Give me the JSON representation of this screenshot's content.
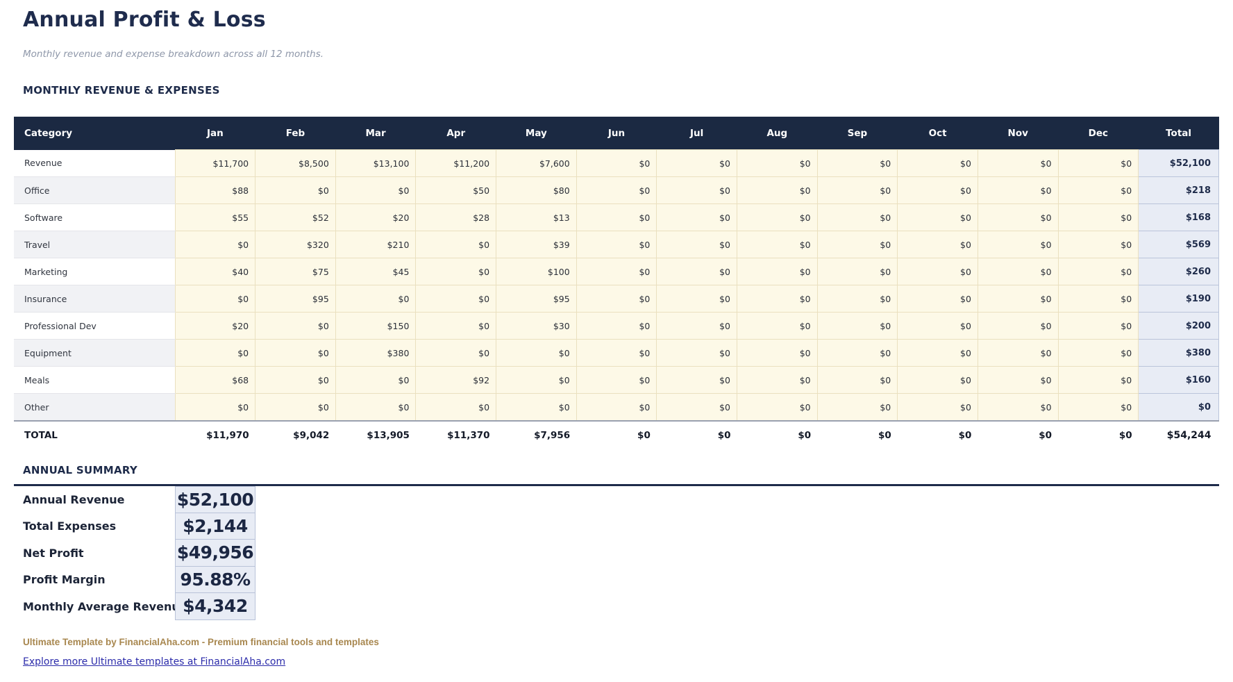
{
  "header": {
    "title": "Annual Profit & Loss",
    "subtitle": "Monthly revenue and expense breakdown across all 12 months."
  },
  "monthly_section": {
    "heading": "MONTHLY REVENUE & EXPENSES",
    "columns": [
      "Category",
      "Jan",
      "Feb",
      "Mar",
      "Apr",
      "May",
      "Jun",
      "Jul",
      "Aug",
      "Sep",
      "Oct",
      "Nov",
      "Dec",
      "Total"
    ],
    "rows": [
      {
        "category": "Revenue",
        "values": [
          "$11,700",
          "$8,500",
          "$13,100",
          "$11,200",
          "$7,600",
          "$0",
          "$0",
          "$0",
          "$0",
          "$0",
          "$0",
          "$0"
        ],
        "total": "$52,100"
      },
      {
        "category": "Office",
        "values": [
          "$88",
          "$0",
          "$0",
          "$50",
          "$80",
          "$0",
          "$0",
          "$0",
          "$0",
          "$0",
          "$0",
          "$0"
        ],
        "total": "$218"
      },
      {
        "category": "Software",
        "values": [
          "$55",
          "$52",
          "$20",
          "$28",
          "$13",
          "$0",
          "$0",
          "$0",
          "$0",
          "$0",
          "$0",
          "$0"
        ],
        "total": "$168"
      },
      {
        "category": "Travel",
        "values": [
          "$0",
          "$320",
          "$210",
          "$0",
          "$39",
          "$0",
          "$0",
          "$0",
          "$0",
          "$0",
          "$0",
          "$0"
        ],
        "total": "$569"
      },
      {
        "category": "Marketing",
        "values": [
          "$40",
          "$75",
          "$45",
          "$0",
          "$100",
          "$0",
          "$0",
          "$0",
          "$0",
          "$0",
          "$0",
          "$0"
        ],
        "total": "$260"
      },
      {
        "category": "Insurance",
        "values": [
          "$0",
          "$95",
          "$0",
          "$0",
          "$95",
          "$0",
          "$0",
          "$0",
          "$0",
          "$0",
          "$0",
          "$0"
        ],
        "total": "$190"
      },
      {
        "category": "Professional Dev",
        "values": [
          "$20",
          "$0",
          "$150",
          "$0",
          "$30",
          "$0",
          "$0",
          "$0",
          "$0",
          "$0",
          "$0",
          "$0"
        ],
        "total": "$200"
      },
      {
        "category": "Equipment",
        "values": [
          "$0",
          "$0",
          "$380",
          "$0",
          "$0",
          "$0",
          "$0",
          "$0",
          "$0",
          "$0",
          "$0",
          "$0"
        ],
        "total": "$380"
      },
      {
        "category": "Meals",
        "values": [
          "$68",
          "$0",
          "$0",
          "$92",
          "$0",
          "$0",
          "$0",
          "$0",
          "$0",
          "$0",
          "$0",
          "$0"
        ],
        "total": "$160"
      },
      {
        "category": "Other",
        "values": [
          "$0",
          "$0",
          "$0",
          "$0",
          "$0",
          "$0",
          "$0",
          "$0",
          "$0",
          "$0",
          "$0",
          "$0"
        ],
        "total": "$0"
      }
    ],
    "total_row": {
      "label": "TOTAL",
      "values": [
        "$11,970",
        "$9,042",
        "$13,905",
        "$11,370",
        "$7,956",
        "$0",
        "$0",
        "$0",
        "$0",
        "$0",
        "$0",
        "$0"
      ],
      "total": "$54,244"
    }
  },
  "summary_section": {
    "heading": "ANNUAL SUMMARY",
    "rows": [
      {
        "label": "Annual Revenue",
        "value": "$52,100"
      },
      {
        "label": "Total Expenses",
        "value": "$2,144"
      },
      {
        "label": "Net Profit",
        "value": "$49,956"
      },
      {
        "label": "Profit Margin",
        "value": "95.88%"
      },
      {
        "label": "Monthly Average Revenu",
        "value": "$4,342"
      }
    ]
  },
  "footer": {
    "tagline": "Ultimate Template by FinancialAha.com - Premium financial tools and templates",
    "link_text": "Explore more Ultimate templates at FinancialAha.com"
  },
  "colors": {
    "header_bg": "#1b2942",
    "accent_navy": "#1e2b4a",
    "cell_cream": "#fdf9e7",
    "cream_border": "#eae0bf",
    "total_col_bg": "#e8ecf5",
    "total_col_border": "#bac4da",
    "alt_row_gray": "#f1f2f5",
    "footer_tan": "#a8874f",
    "link_blue": "#2b2baa"
  }
}
